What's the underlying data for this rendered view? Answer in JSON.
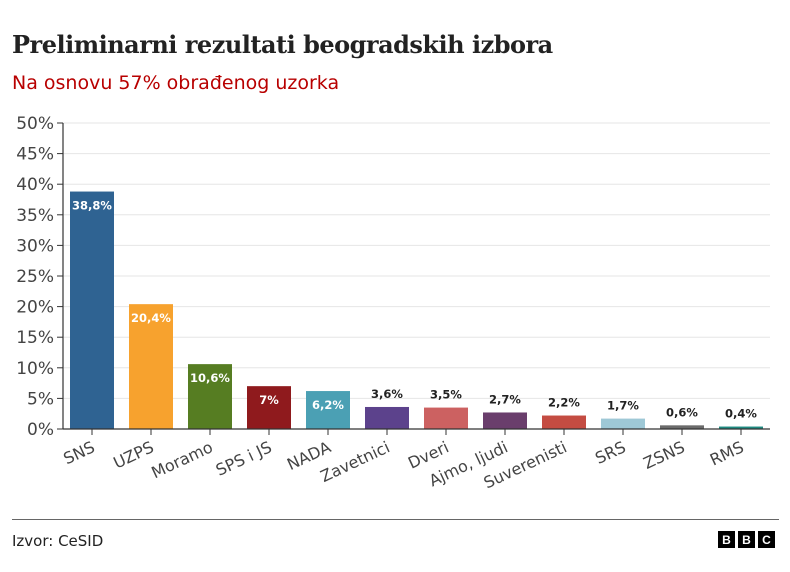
{
  "title": "Preliminarni rezultati beogradskih izbora",
  "subtitle": "Na osnovu 57% obrađenog uzorka",
  "source": "Izvor: CeSID",
  "logo": [
    "B",
    "B",
    "C"
  ],
  "chart_data": {
    "type": "bar",
    "categories": [
      "SNS",
      "UZPS",
      "Moramo",
      "SPS i JS",
      "NADA",
      "Zavetnici",
      "Dveri",
      "Ajmo, ljudi",
      "Suverenisti",
      "SRS",
      "ZSNS",
      "RMS"
    ],
    "values": [
      38.8,
      20.4,
      10.6,
      7,
      6.2,
      3.6,
      3.5,
      2.7,
      2.2,
      1.7,
      0.6,
      0.4
    ],
    "data_labels": [
      "38,8%",
      "20,4%",
      "10,6%",
      "7%",
      "6,2%",
      "3,6%",
      "3,5%",
      "2,7%",
      "2,2%",
      "1,7%",
      "0,6%",
      "0,4%"
    ],
    "colors": [
      "#2f6392",
      "#f7a22e",
      "#567d22",
      "#8f1a1d",
      "#4ba0b4",
      "#5c428c",
      "#cc6161",
      "#6a3e6c",
      "#c44c42",
      "#9ec8d6",
      "#6b6b6b",
      "#1f8a80"
    ],
    "ylim": [
      0,
      50
    ],
    "yticks": [
      0,
      5,
      10,
      15,
      20,
      25,
      30,
      35,
      40,
      45,
      50
    ],
    "ytick_labels": [
      "0%",
      "5%",
      "10%",
      "15%",
      "20%",
      "25%",
      "30%",
      "35%",
      "40%",
      "45%",
      "50%"
    ],
    "grid": true,
    "xlabel": "",
    "ylabel": ""
  }
}
